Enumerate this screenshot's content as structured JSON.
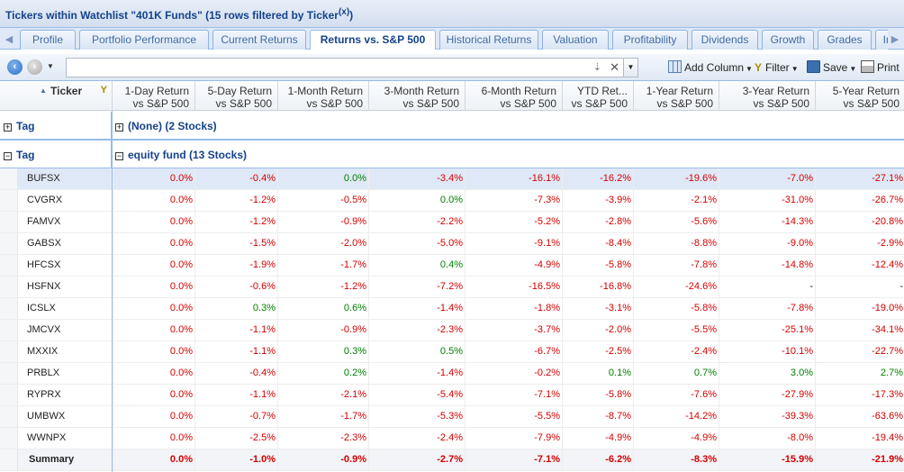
{
  "title": {
    "text": "Tickers within Watchlist \"401K Funds\" (15 rows filtered by Ticker",
    "clear_label": "(x)",
    "close_paren": ")"
  },
  "tabs": [
    "Profile",
    "Portfolio Performance",
    "Current Returns",
    "Returns vs. S&P 500",
    "Historical Returns",
    "Valuation",
    "Profitability",
    "Dividends",
    "Growth",
    "Grades",
    "Inco"
  ],
  "active_tab": "Returns vs. S&P 500",
  "toolbar": {
    "search_value": "",
    "search_placeholder": "",
    "add_column": "Add Column",
    "filter": "Filter",
    "save": "Save",
    "print": "Print"
  },
  "columns": [
    {
      "line1": "Ticker",
      "line2": ""
    },
    {
      "line1": "1-Day Return",
      "line2": "vs S&P 500"
    },
    {
      "line1": "5-Day Return",
      "line2": "vs S&P 500"
    },
    {
      "line1": "1-Month Return",
      "line2": "vs S&P 500"
    },
    {
      "line1": "3-Month Return",
      "line2": "vs S&P 500"
    },
    {
      "line1": "6-Month Return",
      "line2": "vs S&P 500"
    },
    {
      "line1": "YTD Ret...",
      "line2": "vs S&P 500"
    },
    {
      "line1": "1-Year Return",
      "line2": "vs S&P 500"
    },
    {
      "line1": "3-Year Return",
      "line2": "vs S&P 500"
    },
    {
      "line1": "5-Year Return",
      "line2": "vs S&P 500"
    }
  ],
  "groups": [
    {
      "label": "Tag",
      "name": "(None) (2 Stocks)",
      "expanded": false
    },
    {
      "label": "Tag",
      "name": "equity fund (13 Stocks)",
      "expanded": true
    }
  ],
  "rows": [
    {
      "ticker": "BUFSX",
      "values": [
        "0.0%",
        "-0.4%",
        "0.0%",
        "-3.4%",
        "-16.1%",
        "-16.2%",
        "-19.6%",
        "-7.0%",
        "-27.1%"
      ]
    },
    {
      "ticker": "CVGRX",
      "values": [
        "0.0%",
        "-1.2%",
        "-0.5%",
        "0.0%",
        "-7.3%",
        "-3.9%",
        "-2.1%",
        "-31.0%",
        "-26.7%"
      ]
    },
    {
      "ticker": "FAMVX",
      "values": [
        "0.0%",
        "-1.2%",
        "-0.9%",
        "-2.2%",
        "-5.2%",
        "-2.8%",
        "-5.6%",
        "-14.3%",
        "-20.8%"
      ]
    },
    {
      "ticker": "GABSX",
      "values": [
        "0.0%",
        "-1.5%",
        "-2.0%",
        "-5.0%",
        "-9.1%",
        "-8.4%",
        "-8.8%",
        "-9.0%",
        "-2.9%"
      ]
    },
    {
      "ticker": "HFCSX",
      "values": [
        "0.0%",
        "-1.9%",
        "-1.7%",
        "0.4%",
        "-4.9%",
        "-5.8%",
        "-7.8%",
        "-14.8%",
        "-12.4%"
      ]
    },
    {
      "ticker": "HSFNX",
      "values": [
        "0.0%",
        "-0.6%",
        "-1.2%",
        "-7.2%",
        "-16.5%",
        "-16.8%",
        "-24.6%",
        "-",
        "-"
      ]
    },
    {
      "ticker": "ICSLX",
      "values": [
        "0.0%",
        "0.3%",
        "0.6%",
        "-1.4%",
        "-1.8%",
        "-3.1%",
        "-5.8%",
        "-7.8%",
        "-19.0%"
      ]
    },
    {
      "ticker": "JMCVX",
      "values": [
        "0.0%",
        "-1.1%",
        "-0.9%",
        "-2.3%",
        "-3.7%",
        "-2.0%",
        "-5.5%",
        "-25.1%",
        "-34.1%"
      ]
    },
    {
      "ticker": "MXXIX",
      "values": [
        "0.0%",
        "-1.1%",
        "0.3%",
        "0.5%",
        "-6.7%",
        "-2.5%",
        "-2.4%",
        "-10.1%",
        "-22.7%"
      ]
    },
    {
      "ticker": "PRBLX",
      "values": [
        "0.0%",
        "-0.4%",
        "0.2%",
        "-1.4%",
        "-0.2%",
        "0.1%",
        "0.7%",
        "3.0%",
        "2.7%"
      ]
    },
    {
      "ticker": "RYPRX",
      "values": [
        "0.0%",
        "-1.1%",
        "-2.1%",
        "-5.4%",
        "-7.1%",
        "-5.8%",
        "-7.6%",
        "-27.9%",
        "-17.3%"
      ]
    },
    {
      "ticker": "UMBWX",
      "values": [
        "0.0%",
        "-0.7%",
        "-1.7%",
        "-5.3%",
        "-5.5%",
        "-8.7%",
        "-14.2%",
        "-39.3%",
        "-63.6%"
      ]
    },
    {
      "ticker": "WWNPX",
      "values": [
        "0.0%",
        "-2.5%",
        "-2.3%",
        "-2.4%",
        "-7.9%",
        "-4.9%",
        "-4.9%",
        "-8.0%",
        "-19.4%"
      ]
    }
  ],
  "summary": {
    "label": "Summary",
    "values": [
      "0.0%",
      "-1.0%",
      "-0.9%",
      "-2.7%",
      "-7.1%",
      "-6.2%",
      "-8.3%",
      "-15.9%",
      "-21.9%"
    ]
  },
  "colors": {
    "negative": "#d40000",
    "positive": "#008000",
    "accent": "#15428b",
    "selected_row": "#dfe8f6"
  }
}
